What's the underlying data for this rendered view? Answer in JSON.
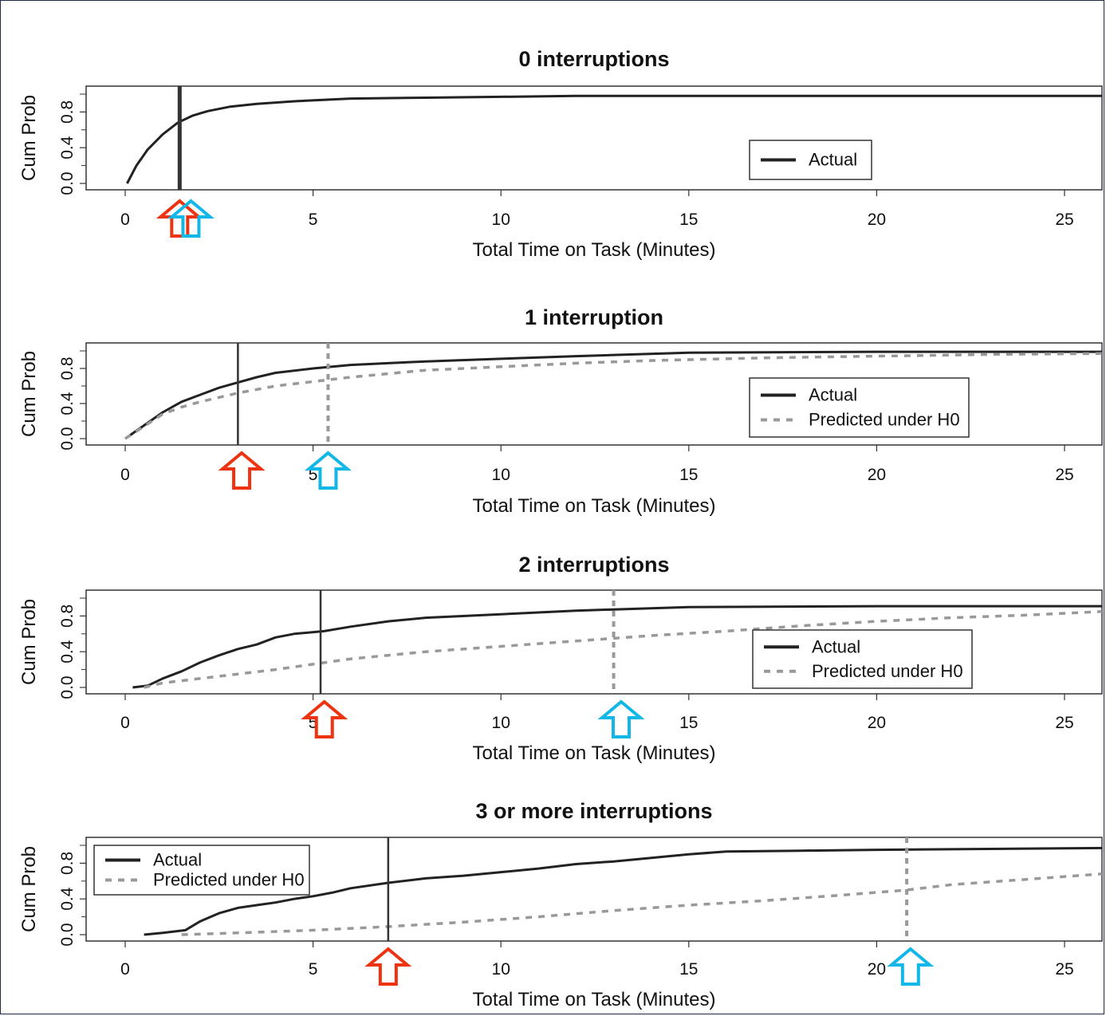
{
  "chart_data": [
    {
      "type": "line",
      "title": "0 interruptions",
      "xlabel": "Total Time on Task (Minutes)",
      "ylabel": "Cum Prob",
      "xlim": [
        -0.5,
        26
      ],
      "ylim": [
        0,
        1
      ],
      "xticks": [
        0,
        5,
        10,
        15,
        20,
        25
      ],
      "yticks": [
        "0.0",
        "0.4",
        "0.8"
      ],
      "legend_position": "lower-right",
      "series": [
        {
          "name": "Actual",
          "style": "solid",
          "color": "#222222",
          "x": [
            0.05,
            0.3,
            0.6,
            1.0,
            1.4,
            1.8,
            2.2,
            2.8,
            3.5,
            4.5,
            6,
            8,
            10,
            12,
            16,
            20,
            26
          ],
          "y": [
            0,
            0.2,
            0.38,
            0.55,
            0.68,
            0.76,
            0.81,
            0.86,
            0.89,
            0.92,
            0.95,
            0.96,
            0.97,
            0.98,
            0.98,
            0.98,
            0.98
          ]
        }
      ],
      "vlines": [
        {
          "series": "Actual",
          "x": 1.45,
          "style": "solid-thick"
        }
      ],
      "arrows": [
        {
          "x": 1.45,
          "color": "#ee3311"
        },
        {
          "x": 1.75,
          "color": "#11b7e6"
        }
      ]
    },
    {
      "type": "line",
      "title": "1 interruption",
      "xlabel": "Total Time on Task (Minutes)",
      "ylabel": "Cum Prob",
      "xlim": [
        -0.5,
        26
      ],
      "ylim": [
        0,
        1
      ],
      "xticks": [
        0,
        5,
        10,
        15,
        20,
        25
      ],
      "yticks": [
        "0.0",
        "0.4",
        "0.8"
      ],
      "legend_position": "lower-right",
      "series": [
        {
          "name": "Actual",
          "style": "solid",
          "color": "#222222",
          "x": [
            0,
            0.5,
            1,
            1.5,
            2,
            2.5,
            3,
            3.5,
            4,
            5,
            6,
            7,
            8,
            10,
            12,
            15,
            20,
            26
          ],
          "y": [
            0,
            0.15,
            0.3,
            0.42,
            0.5,
            0.58,
            0.64,
            0.7,
            0.75,
            0.8,
            0.84,
            0.86,
            0.88,
            0.91,
            0.94,
            0.98,
            0.99,
            0.99
          ]
        },
        {
          "name": "Predicted under H0",
          "style": "dashed",
          "color": "#999999",
          "x": [
            0,
            0.5,
            1,
            1.5,
            2,
            3,
            4,
            5,
            6,
            7,
            8,
            10,
            12,
            14,
            17,
            20,
            23,
            26
          ],
          "y": [
            0,
            0.14,
            0.28,
            0.36,
            0.42,
            0.52,
            0.6,
            0.65,
            0.7,
            0.74,
            0.78,
            0.82,
            0.86,
            0.89,
            0.92,
            0.94,
            0.96,
            0.97
          ]
        }
      ],
      "vlines": [
        {
          "series": "Actual",
          "x": 3.0,
          "style": "solid"
        },
        {
          "series": "Predicted under H0",
          "x": 5.4,
          "style": "dashed"
        }
      ],
      "arrows": [
        {
          "x": 3.1,
          "color": "#ee3311"
        },
        {
          "x": 5.4,
          "color": "#11b7e6"
        }
      ]
    },
    {
      "type": "line",
      "title": "2 interruptions",
      "xlabel": "Total Time on Task (Minutes)",
      "ylabel": "Cum Prob",
      "xlim": [
        -0.5,
        26
      ],
      "ylim": [
        0,
        1
      ],
      "xticks": [
        0,
        5,
        10,
        15,
        20,
        25
      ],
      "yticks": [
        "0.0",
        "0.4",
        "0.8"
      ],
      "legend_position": "lower-right",
      "series": [
        {
          "name": "Actual",
          "style": "solid",
          "color": "#222222",
          "x": [
            0.2,
            0.6,
            1,
            1.5,
            2,
            2.5,
            3,
            3.5,
            4,
            4.5,
            5.3,
            6,
            7,
            8,
            10,
            12,
            15,
            20,
            26
          ],
          "y": [
            0,
            0.02,
            0.1,
            0.18,
            0.28,
            0.36,
            0.43,
            0.48,
            0.56,
            0.6,
            0.63,
            0.68,
            0.74,
            0.78,
            0.82,
            0.86,
            0.9,
            0.91,
            0.91
          ]
        },
        {
          "name": "Predicted under H0",
          "style": "dashed",
          "color": "#999999",
          "x": [
            0.5,
            1,
            2,
            3,
            4,
            5,
            6,
            7,
            8,
            10,
            12,
            14,
            16,
            18,
            20,
            22,
            24,
            26
          ],
          "y": [
            0,
            0.05,
            0.1,
            0.15,
            0.2,
            0.26,
            0.32,
            0.36,
            0.4,
            0.46,
            0.52,
            0.58,
            0.63,
            0.69,
            0.74,
            0.78,
            0.81,
            0.85
          ]
        }
      ],
      "vlines": [
        {
          "series": "Actual",
          "x": 5.2,
          "style": "solid"
        },
        {
          "series": "Predicted under H0",
          "x": 13.0,
          "style": "dashed"
        }
      ],
      "arrows": [
        {
          "x": 5.3,
          "color": "#ee3311"
        },
        {
          "x": 13.2,
          "color": "#11b7e6"
        }
      ]
    },
    {
      "type": "line",
      "title": "3 or more interruptions",
      "xlabel": "Total Time on Task (Minutes)",
      "ylabel": "Cum Prob",
      "xlim": [
        -0.5,
        26
      ],
      "ylim": [
        0,
        1
      ],
      "xticks": [
        0,
        5,
        10,
        15,
        20,
        25
      ],
      "yticks": [
        "0.0",
        "0.4",
        "0.8"
      ],
      "legend_position": "upper-left",
      "series": [
        {
          "name": "Actual",
          "style": "solid",
          "color": "#222222",
          "x": [
            0.5,
            1,
            1.6,
            2,
            2.5,
            3,
            3.5,
            4,
            4.5,
            5,
            5.5,
            6,
            7,
            8,
            9,
            10,
            11,
            12,
            13,
            14,
            15,
            16,
            18,
            20,
            26
          ],
          "y": [
            0,
            0.02,
            0.05,
            0.15,
            0.24,
            0.3,
            0.33,
            0.36,
            0.4,
            0.43,
            0.47,
            0.52,
            0.58,
            0.63,
            0.66,
            0.7,
            0.74,
            0.79,
            0.82,
            0.86,
            0.9,
            0.93,
            0.94,
            0.95,
            0.97
          ]
        },
        {
          "name": "Predicted under H0",
          "style": "dashed",
          "color": "#999999",
          "x": [
            1.5,
            3,
            5,
            7,
            9,
            11,
            13,
            15,
            17,
            19,
            20.8,
            22,
            24,
            26
          ],
          "y": [
            0,
            0.02,
            0.05,
            0.09,
            0.14,
            0.2,
            0.27,
            0.33,
            0.38,
            0.44,
            0.5,
            0.56,
            0.62,
            0.68
          ]
        }
      ],
      "vlines": [
        {
          "series": "Actual",
          "x": 7.0,
          "style": "solid"
        },
        {
          "series": "Predicted under H0",
          "x": 20.8,
          "style": "dashed"
        }
      ],
      "arrows": [
        {
          "x": 7.0,
          "color": "#ee3311"
        },
        {
          "x": 20.9,
          "color": "#11b7e6"
        }
      ]
    }
  ]
}
